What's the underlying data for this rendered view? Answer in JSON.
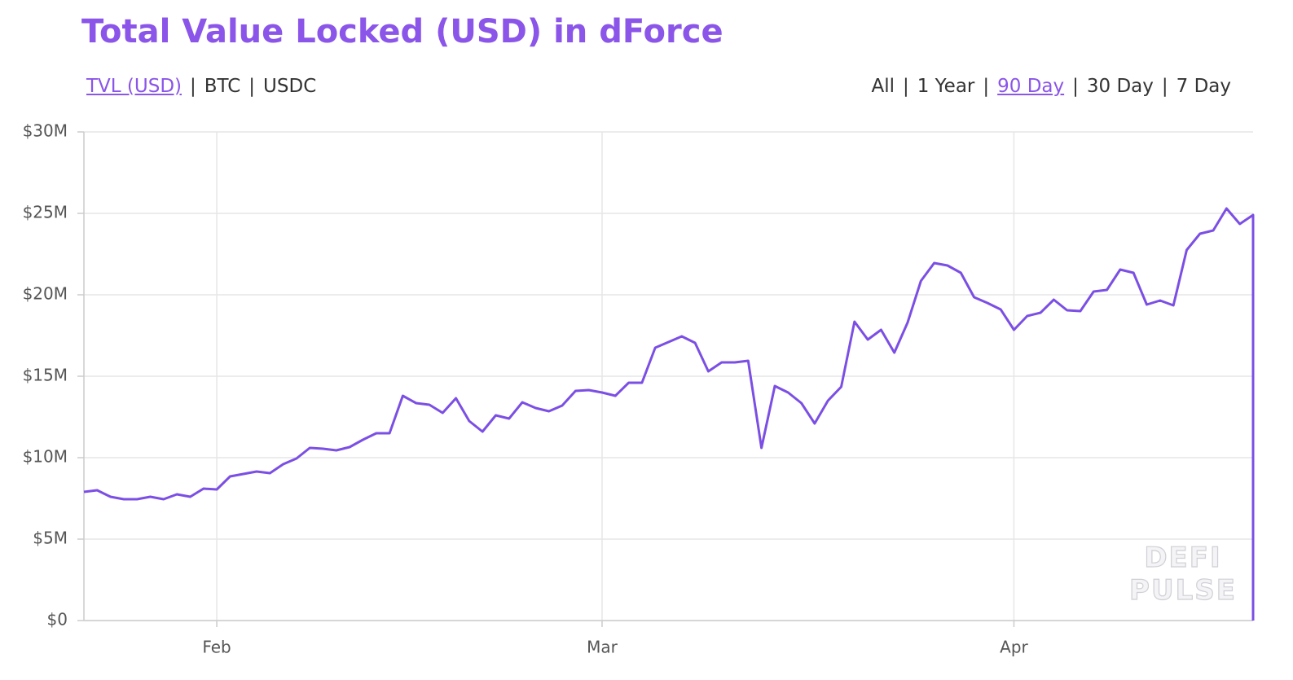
{
  "chart_data": {
    "type": "line",
    "title": "Total Value Locked (USD) in dForce",
    "metric_tabs": [
      "TVL (USD)",
      "BTC",
      "USDC"
    ],
    "range_tabs": [
      "All",
      "1 Year",
      "90 Day",
      "30 Day",
      "7 Day"
    ],
    "separator": "|",
    "watermark": [
      "DEFI",
      "PULSE"
    ],
    "color": "#7b4fe4",
    "grid": true,
    "x": [
      0,
      1,
      2,
      3,
      4,
      5,
      6,
      7,
      8,
      9,
      10,
      11,
      12,
      13,
      14,
      15,
      16,
      17,
      18,
      19,
      20,
      21,
      22,
      23,
      24,
      25,
      26,
      27,
      28,
      29,
      30,
      31,
      32,
      33,
      34,
      35,
      36,
      37,
      38,
      39,
      40,
      41,
      42,
      43,
      44,
      45,
      46,
      47,
      48,
      49,
      50,
      51,
      52,
      53,
      54,
      55,
      56,
      57,
      58,
      59,
      60,
      61,
      62,
      63,
      64,
      65,
      66,
      67,
      68,
      69,
      70,
      71,
      72,
      73,
      74,
      75,
      76,
      77,
      78,
      79,
      80,
      81,
      82,
      83,
      84,
      85,
      86,
      87,
      88,
      88
    ],
    "values": [
      7900000,
      8000000,
      7600000,
      7450000,
      7450000,
      7600000,
      7450000,
      7750000,
      7600000,
      8100000,
      8050000,
      8850000,
      9000000,
      9150000,
      9050000,
      9600000,
      9950000,
      10600000,
      10550000,
      10450000,
      10650000,
      11100000,
      11500000,
      11500000,
      13800000,
      13350000,
      13250000,
      12750000,
      13650000,
      12250000,
      11600000,
      12600000,
      12400000,
      13400000,
      13050000,
      12850000,
      13200000,
      14100000,
      14150000,
      14000000,
      13800000,
      14600000,
      14600000,
      16750000,
      17100000,
      17450000,
      17050000,
      15300000,
      15850000,
      15850000,
      15950000,
      10600000,
      14400000,
      14000000,
      13350000,
      12100000,
      13500000,
      14350000,
      18350000,
      17250000,
      17850000,
      16450000,
      18300000,
      20850000,
      21950000,
      21800000,
      21350000,
      19850000,
      19500000,
      19100000,
      17850000,
      18700000,
      18900000,
      19700000,
      19050000,
      19000000,
      20200000,
      20300000,
      21550000,
      21350000,
      19400000,
      19650000,
      19350000,
      22750000,
      23750000,
      23950000,
      25300000,
      24350000,
      24900000,
      0
    ],
    "xlim": [
      0,
      88
    ],
    "xticks": [
      {
        "value": 10,
        "label": "Feb"
      },
      {
        "value": 39,
        "label": "Mar"
      },
      {
        "value": 70,
        "label": "Apr"
      }
    ],
    "ylim": [
      0,
      30000000
    ],
    "yticks": [
      {
        "value": 0,
        "label": "$0"
      },
      {
        "value": 5000000,
        "label": "$5M"
      },
      {
        "value": 10000000,
        "label": "$10M"
      },
      {
        "value": 15000000,
        "label": "$15M"
      },
      {
        "value": 20000000,
        "label": "$20M"
      },
      {
        "value": 25000000,
        "label": "$25M"
      },
      {
        "value": 30000000,
        "label": "$30M"
      }
    ]
  }
}
